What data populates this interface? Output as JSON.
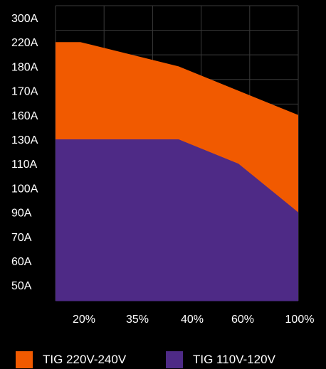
{
  "chart_data": {
    "type": "area",
    "title": "",
    "xlabel": "",
    "ylabel": "",
    "categories": [
      "20%",
      "35%",
      "40%",
      "60%",
      "100%"
    ],
    "y_ticks": [
      "300A",
      "220A",
      "180A",
      "170A",
      "160A",
      "130A",
      "110A",
      "100A",
      "90A",
      "70A",
      "60A",
      "50A"
    ],
    "series": [
      {
        "name": "TIG 220V-240V",
        "color": "#f15a00",
        "points": [
          {
            "x": "20%",
            "y": "220A"
          },
          {
            "x": "35%",
            "y": "200A"
          },
          {
            "x": "40%",
            "y": "180A"
          },
          {
            "x": "60%",
            "y": "170A"
          },
          {
            "x": "100%",
            "y": "160A"
          }
        ]
      },
      {
        "name": "TIG 110V-120V",
        "color": "#4e2a86",
        "points": [
          {
            "x": "20%",
            "y": "130A"
          },
          {
            "x": "35%",
            "y": "130A"
          },
          {
            "x": "40%",
            "y": "130A"
          },
          {
            "x": "60%",
            "y": "110A"
          },
          {
            "x": "100%",
            "y": "90A"
          }
        ]
      }
    ],
    "grid": true,
    "legend_position": "bottom"
  }
}
